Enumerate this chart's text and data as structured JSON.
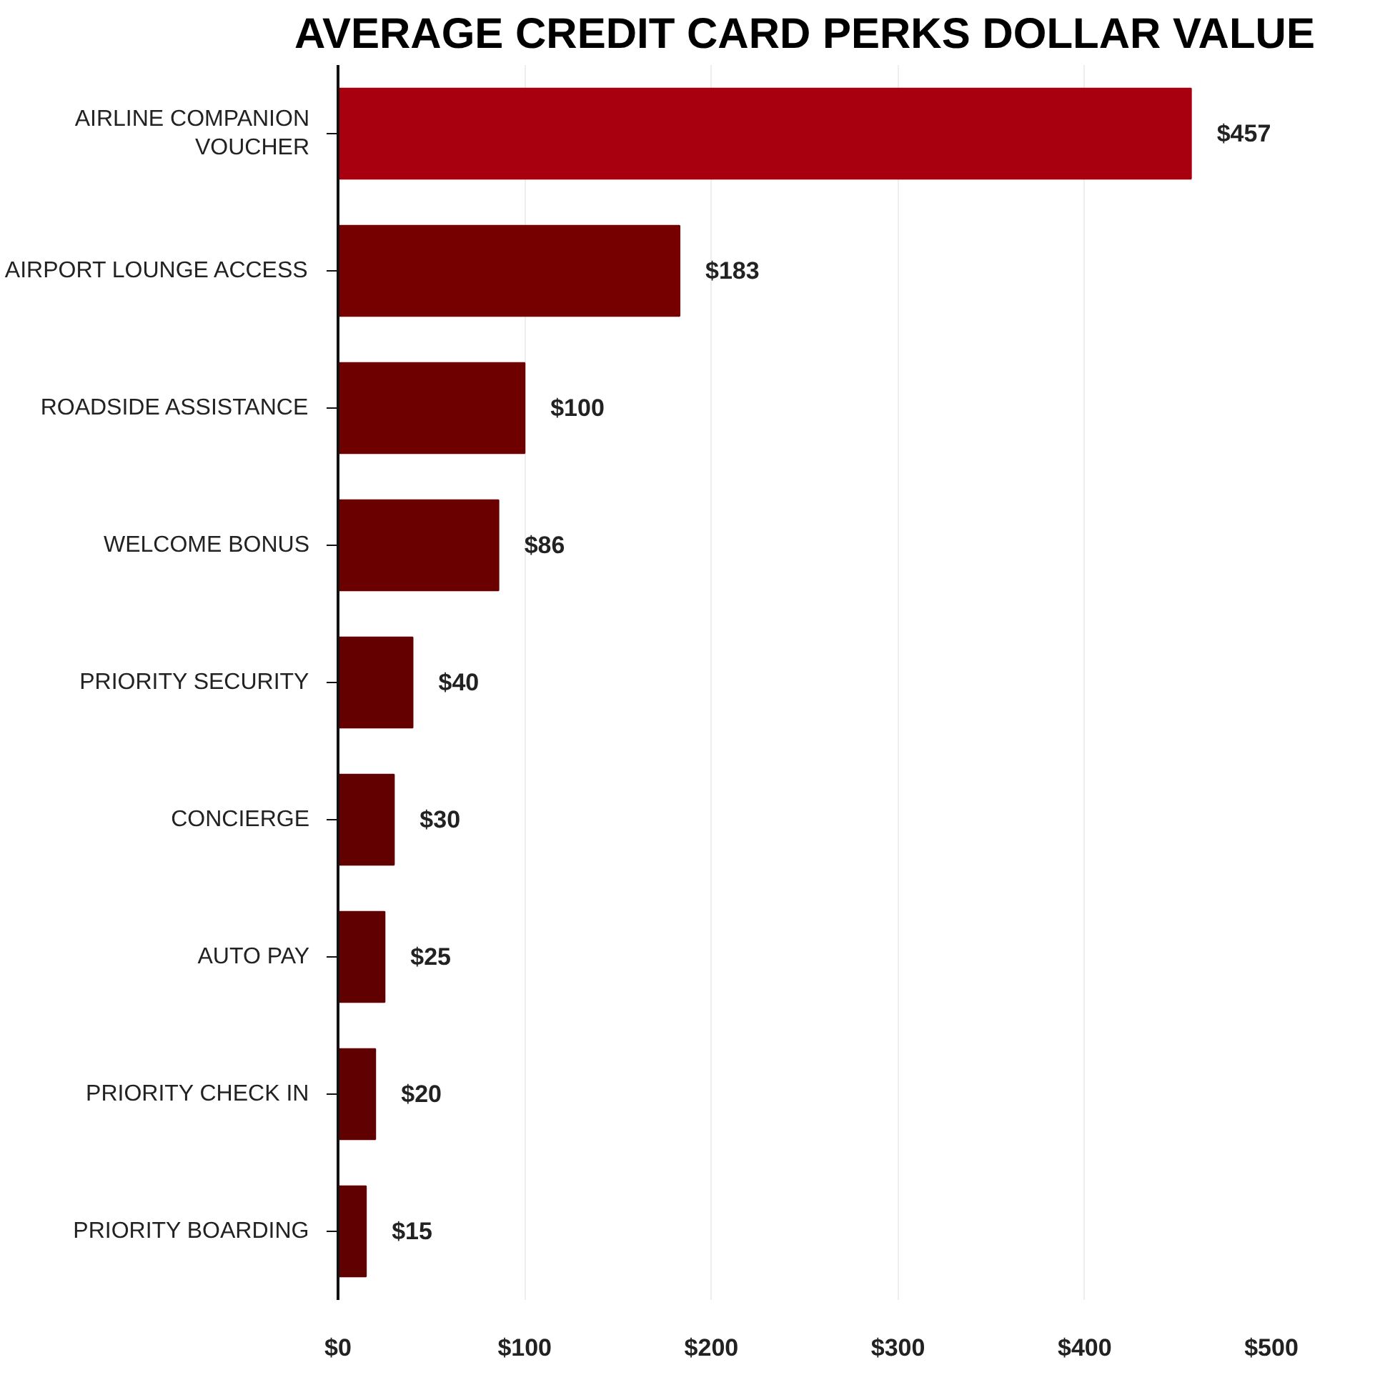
{
  "chart_data": {
    "type": "bar",
    "orientation": "horizontal",
    "title": "AVERAGE CREDIT CARD PERKS DOLLAR VALUE",
    "categories": [
      "AIRLINE COMPANION VOUCHER",
      "AIRPORT LOUNGE ACCESS",
      "ROADSIDE ASSISTANCE",
      "WELCOME BONUS",
      "PRIORITY SECURITY",
      "CONCIERGE",
      "AUTO PAY",
      "PRIORITY CHECK IN",
      "PRIORITY BOARDING"
    ],
    "values": [
      457,
      183,
      100,
      86,
      40,
      30,
      25,
      20,
      15
    ],
    "colors": [
      "#a8000e",
      "#760000",
      "#6e0000",
      "#6a0000",
      "#640000",
      "#620000",
      "#600000",
      "#600000",
      "#600000"
    ],
    "value_labels": [
      "$457",
      "$183",
      "$100",
      "$86",
      "$40",
      "$30",
      "$25",
      "$20",
      "$15"
    ],
    "xlim": [
      0,
      500
    ],
    "xticks": [
      {
        "value": 0,
        "label": "$0"
      },
      {
        "value": 100,
        "label": "$100"
      },
      {
        "value": 200,
        "label": "$200"
      },
      {
        "value": 300,
        "label": "$300"
      },
      {
        "value": 400,
        "label": "$400"
      },
      {
        "value": 500,
        "label": "$500"
      }
    ],
    "grid": "x"
  }
}
